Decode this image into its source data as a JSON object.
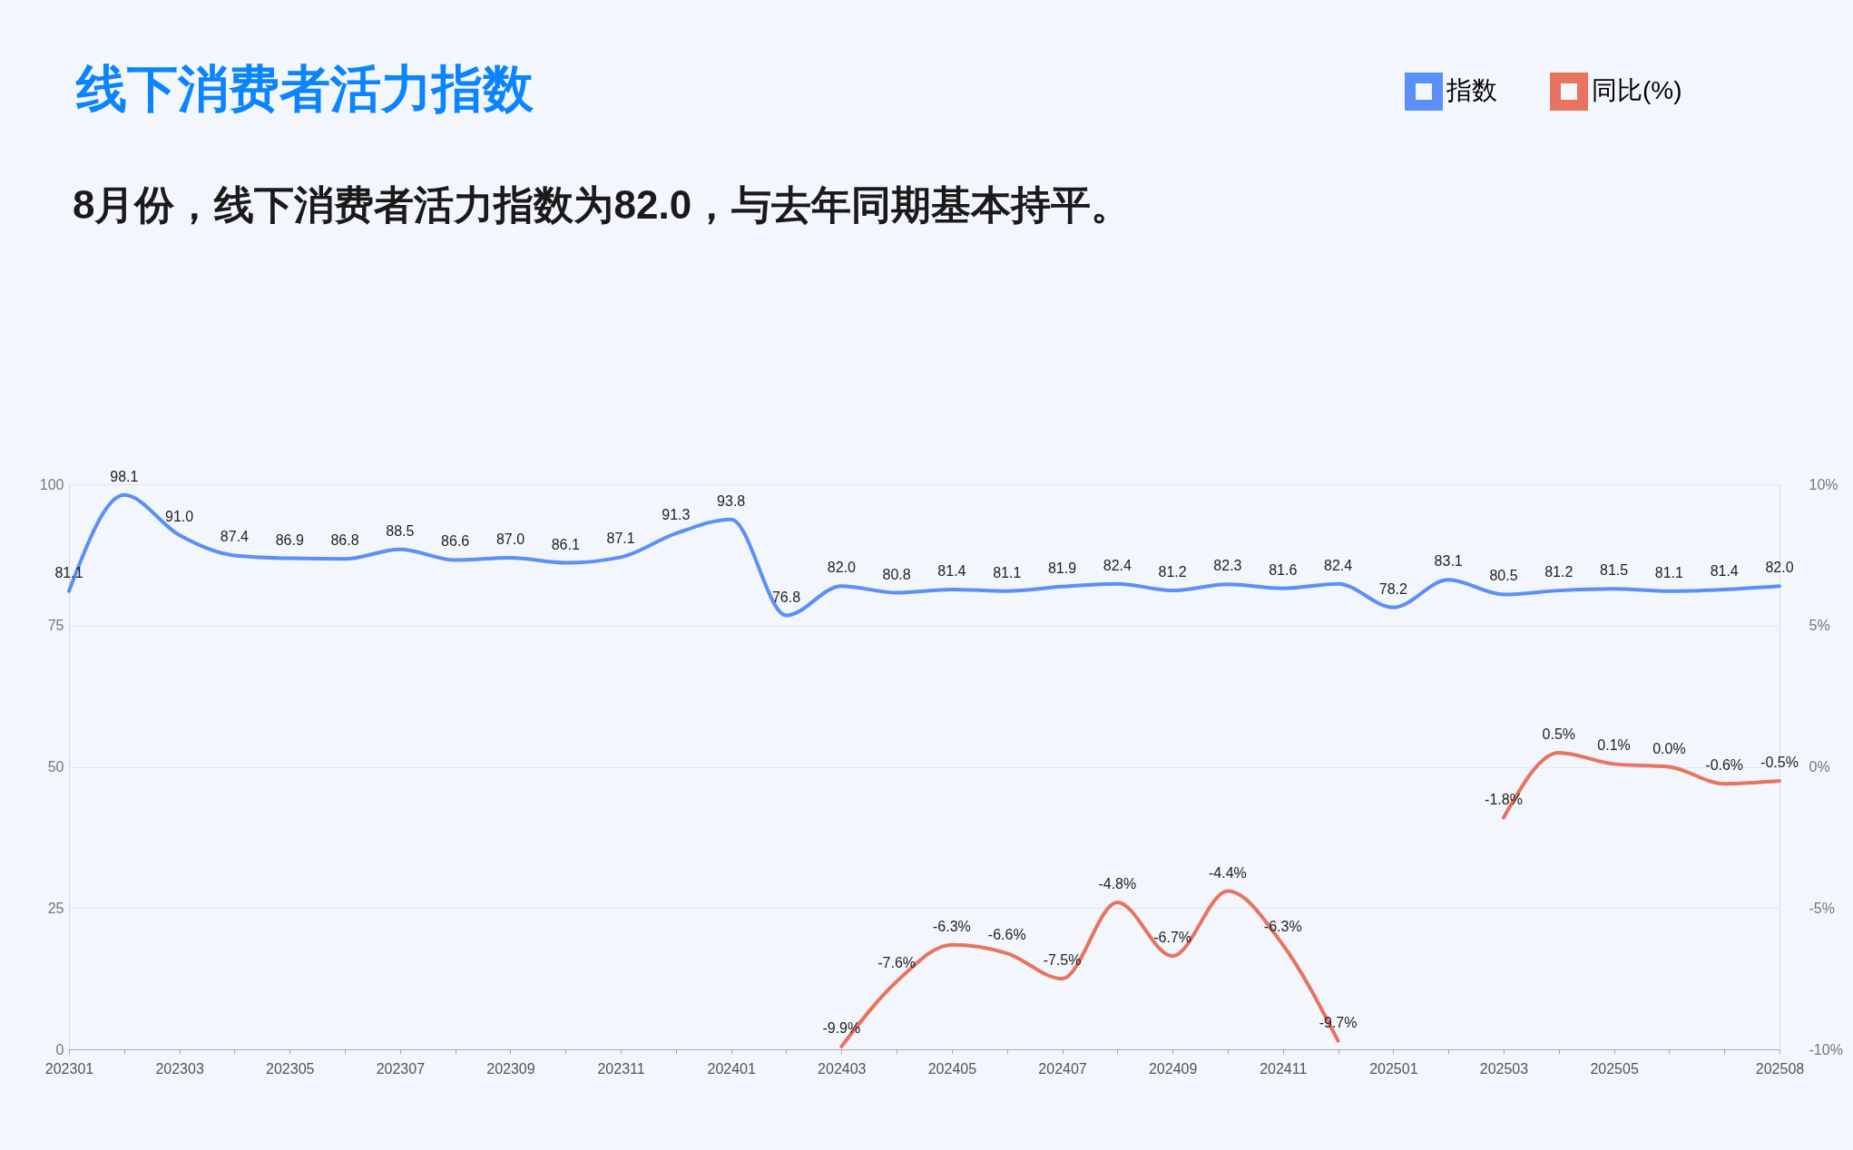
{
  "chart_data": {
    "type": "line",
    "title": "线下消费者活力指数",
    "subtitle": "8月份，线下消费者活力指数为82.0，与去年同期基本持平。",
    "categories": [
      "202301",
      null,
      "202303",
      null,
      "202305",
      null,
      "202307",
      null,
      "202309",
      null,
      "202311",
      null,
      "202401",
      null,
      "202403",
      null,
      "202405",
      null,
      "202407",
      null,
      "202409",
      null,
      "202411",
      null,
      "202501",
      null,
      "202503",
      null,
      "202505",
      null,
      null,
      "202508"
    ],
    "ylim": [
      0,
      100
    ],
    "yticks": [
      0,
      25,
      50,
      75,
      100
    ],
    "y2lim": [
      -10,
      10
    ],
    "y2ticks": [
      {
        "value": -10,
        "label": "-10%"
      },
      {
        "value": -5,
        "label": "-5%"
      },
      {
        "value": 0,
        "label": "0%"
      },
      {
        "value": 5,
        "label": "5%"
      },
      {
        "value": 10,
        "label": "10%"
      }
    ],
    "grid": "y",
    "legend": "top right",
    "marker": "none",
    "series": [
      {
        "name": "指数",
        "color": "#5b8ff9",
        "values": [
          81.1,
          98.1,
          91.0,
          87.4,
          86.9,
          86.8,
          88.5,
          86.6,
          87.0,
          86.1,
          87.1,
          91.3,
          93.8,
          76.8,
          82.0,
          80.8,
          81.4,
          81.1,
          81.9,
          82.4,
          81.2,
          82.3,
          81.6,
          82.4,
          78.2,
          83.1,
          80.5,
          81.2,
          81.5,
          81.1,
          81.4,
          82.0
        ],
        "value_labels": [
          "81.1",
          "98.1",
          "91.0",
          "87.4",
          "86.9",
          "86.8",
          "88.5",
          "86.6",
          "87.0",
          "86.1",
          "87.1",
          "91.3",
          "93.8",
          "76.8",
          "82.0",
          "80.8",
          "81.4",
          "81.1",
          "81.9",
          "82.4",
          "81.2",
          "82.3",
          "81.6",
          "82.4",
          "78.2",
          "83.1",
          "80.5",
          "81.2",
          "81.5",
          "81.1",
          "81.4",
          "82.0"
        ]
      },
      {
        "name": "同比(%)",
        "color": "#e8735f",
        "axis": "y2",
        "values": [
          null,
          null,
          null,
          null,
          null,
          null,
          null,
          null,
          null,
          null,
          null,
          null,
          null,
          null,
          -9.9,
          -7.6,
          -6.3,
          -6.6,
          -7.5,
          -4.8,
          -6.7,
          -4.4,
          -6.3,
          -9.7,
          null,
          null,
          -1.8,
          0.5,
          0.1,
          0.0,
          -0.6,
          -0.5
        ],
        "value_labels": [
          null,
          null,
          null,
          null,
          null,
          null,
          null,
          null,
          null,
          null,
          null,
          null,
          null,
          null,
          "-9.9%",
          "-7.6%",
          "-6.3%",
          "-6.6%",
          "-7.5%",
          "-4.8%",
          "-6.7%",
          "-4.4%",
          "-6.3%",
          "-9.7%",
          null,
          null,
          "-1.8%",
          "0.5%",
          "0.1%",
          "0.0%",
          "-0.6%",
          "-0.5%"
        ]
      }
    ]
  }
}
